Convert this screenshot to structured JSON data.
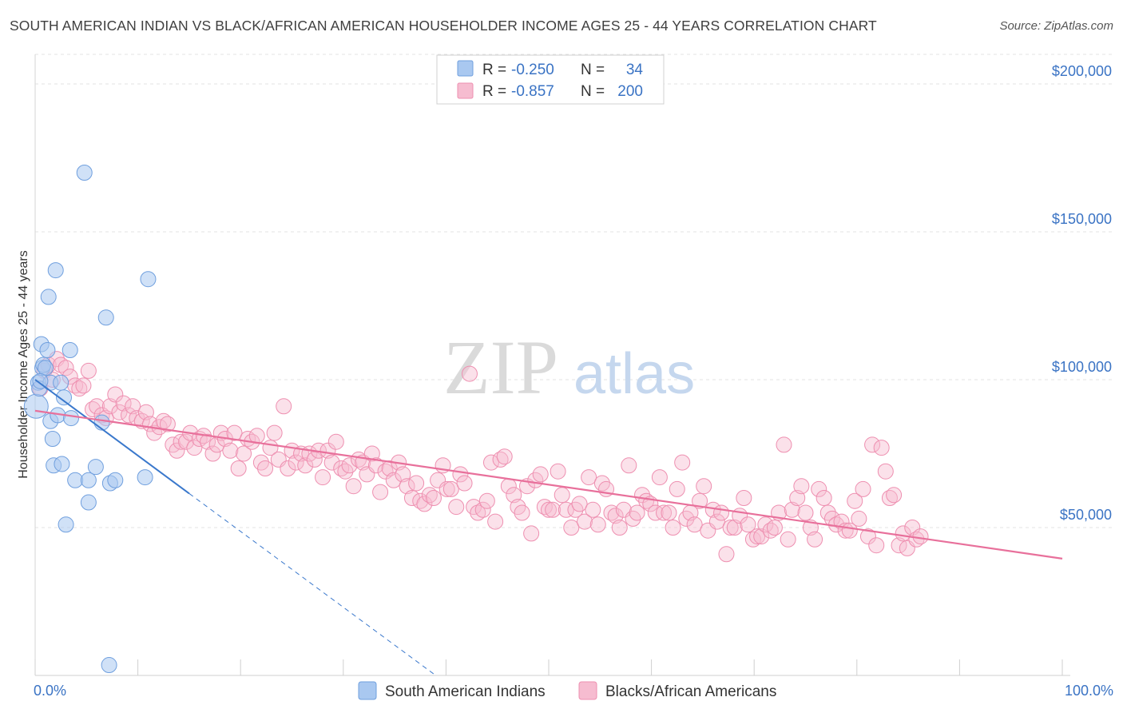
{
  "header": {
    "title": "SOUTH AMERICAN INDIAN VS BLACK/AFRICAN AMERICAN HOUSEHOLDER INCOME AGES 25 - 44 YEARS CORRELATION CHART",
    "source": "Source: ZipAtlas.com"
  },
  "watermark": {
    "zip": "ZIP",
    "atlas": "atlas"
  },
  "legend": {
    "r_label": "R =",
    "n_label": "N =",
    "rows": [
      {
        "r": "-0.250",
        "n": "34"
      },
      {
        "r": "-0.857",
        "n": "200"
      }
    ]
  },
  "colors": {
    "blue_fill": "#a9c8f0",
    "blue_stroke": "#6f9fde",
    "blue_line": "#3a78cc",
    "pink_fill": "#f6bcd0",
    "pink_stroke": "#ee8fb0",
    "pink_line": "#e8709b",
    "tick_text": "#3a73c4"
  },
  "chart_data": {
    "type": "scatter",
    "title": "SOUTH AMERICAN INDIAN VS BLACK/AFRICAN AMERICAN HOUSEHOLDER INCOME AGES 25 - 44 YEARS CORRELATION CHART",
    "xlabel": "",
    "ylabel": "Householder Income Ages 25 - 44 years",
    "xlim": [
      0,
      100
    ],
    "ylim": [
      0,
      210000
    ],
    "x_tick_labels": [
      "0.0%",
      "100.0%"
    ],
    "y_ticks": [
      50000,
      100000,
      150000,
      200000
    ],
    "y_tick_labels": [
      "$50,000",
      "$100,000",
      "$150,000",
      "$200,000"
    ],
    "grid": "horizontal dashed",
    "legend_position": "top-center",
    "series": [
      {
        "name": "South American Indians",
        "color": "#a9c8f0",
        "r": -0.25,
        "n": 34,
        "trend": {
          "x0": 0,
          "y0": 100000,
          "x1": 15,
          "y1": 61500,
          "dashed_to_x": 39,
          "dashed_to_y": 0
        },
        "points": [
          [
            0.1,
            91000
          ],
          [
            0.3,
            99000
          ],
          [
            0.4,
            97000
          ],
          [
            0.6,
            112000
          ],
          [
            0.7,
            104000
          ],
          [
            0.8,
            105000
          ],
          [
            1.0,
            104000
          ],
          [
            1.2,
            110000
          ],
          [
            1.3,
            128000
          ],
          [
            1.5,
            99000
          ],
          [
            1.5,
            86000
          ],
          [
            1.7,
            80000
          ],
          [
            1.8,
            71000
          ],
          [
            2.0,
            137000
          ],
          [
            2.2,
            88000
          ],
          [
            2.5,
            99000
          ],
          [
            2.6,
            71500
          ],
          [
            2.8,
            94000
          ],
          [
            3.0,
            51000
          ],
          [
            3.4,
            110000
          ],
          [
            3.5,
            87000
          ],
          [
            3.9,
            66000
          ],
          [
            4.8,
            170000
          ],
          [
            5.2,
            58500
          ],
          [
            5.2,
            66000
          ],
          [
            5.9,
            70500
          ],
          [
            6.5,
            85500
          ],
          [
            6.9,
            121000
          ],
          [
            7.2,
            3500
          ],
          [
            7.3,
            65000
          ],
          [
            7.8,
            66000
          ],
          [
            10.7,
            67000
          ],
          [
            11.0,
            134000
          ],
          [
            0.5,
            99500
          ]
        ]
      },
      {
        "name": "Blacks/African Americans",
        "color": "#f6bcd0",
        "r": -0.857,
        "n": 200,
        "trend": {
          "x0": 0,
          "y0": 89500,
          "x1": 100,
          "y1": 39500
        },
        "points": [
          [
            0.5,
            97000
          ],
          [
            0.9,
            103000
          ],
          [
            1.3,
            105000
          ],
          [
            1.7,
            100000
          ],
          [
            2.1,
            107000
          ],
          [
            2.5,
            105000
          ],
          [
            3.0,
            104000
          ],
          [
            3.4,
            101000
          ],
          [
            3.9,
            98000
          ],
          [
            4.3,
            97000
          ],
          [
            4.7,
            98000
          ],
          [
            5.2,
            103000
          ],
          [
            5.6,
            90000
          ],
          [
            6.0,
            91000
          ],
          [
            6.5,
            88000
          ],
          [
            6.9,
            87000
          ],
          [
            7.3,
            91000
          ],
          [
            7.8,
            95000
          ],
          [
            8.2,
            89000
          ],
          [
            8.6,
            92000
          ],
          [
            9.1,
            88000
          ],
          [
            9.5,
            91000
          ],
          [
            9.9,
            87000
          ],
          [
            10.4,
            86000
          ],
          [
            10.8,
            89000
          ],
          [
            11.2,
            85000
          ],
          [
            11.6,
            82000
          ],
          [
            12.1,
            84000
          ],
          [
            12.5,
            86000
          ],
          [
            12.9,
            85000
          ],
          [
            13.4,
            78000
          ],
          [
            13.8,
            76000
          ],
          [
            14.2,
            79000
          ],
          [
            14.7,
            79000
          ],
          [
            15.1,
            82000
          ],
          [
            15.5,
            77000
          ],
          [
            16.0,
            80000
          ],
          [
            16.4,
            81000
          ],
          [
            16.8,
            79000
          ],
          [
            17.3,
            75000
          ],
          [
            17.7,
            78000
          ],
          [
            18.1,
            82000
          ],
          [
            18.5,
            80000
          ],
          [
            19.0,
            76000
          ],
          [
            19.4,
            82000
          ],
          [
            19.8,
            70000
          ],
          [
            20.3,
            75000
          ],
          [
            20.7,
            80000
          ],
          [
            21.1,
            79000
          ],
          [
            21.6,
            81000
          ],
          [
            22.0,
            72000
          ],
          [
            22.4,
            70000
          ],
          [
            22.9,
            77000
          ],
          [
            23.3,
            82000
          ],
          [
            23.7,
            73000
          ],
          [
            24.2,
            91000
          ],
          [
            24.6,
            70000
          ],
          [
            25.0,
            76000
          ],
          [
            25.4,
            72000
          ],
          [
            25.9,
            75000
          ],
          [
            26.3,
            71000
          ],
          [
            26.7,
            75000
          ],
          [
            27.2,
            73000
          ],
          [
            27.6,
            76000
          ],
          [
            28.0,
            67000
          ],
          [
            28.5,
            76000
          ],
          [
            28.9,
            72000
          ],
          [
            29.3,
            79000
          ],
          [
            29.8,
            70000
          ],
          [
            30.2,
            69000
          ],
          [
            30.6,
            71000
          ],
          [
            31.0,
            64000
          ],
          [
            31.5,
            73000
          ],
          [
            31.9,
            72000
          ],
          [
            32.3,
            68000
          ],
          [
            32.8,
            75000
          ],
          [
            33.2,
            71000
          ],
          [
            33.6,
            62000
          ],
          [
            34.1,
            69000
          ],
          [
            34.5,
            70000
          ],
          [
            34.9,
            66000
          ],
          [
            35.4,
            72000
          ],
          [
            35.8,
            68000
          ],
          [
            36.2,
            64000
          ],
          [
            36.7,
            60000
          ],
          [
            37.1,
            65000
          ],
          [
            37.5,
            59000
          ],
          [
            37.9,
            58000
          ],
          [
            38.4,
            61000
          ],
          [
            38.8,
            60000
          ],
          [
            39.2,
            66000
          ],
          [
            39.7,
            71000
          ],
          [
            40.1,
            63000
          ],
          [
            40.5,
            63000
          ],
          [
            41.0,
            57000
          ],
          [
            41.4,
            68000
          ],
          [
            41.8,
            65000
          ],
          [
            42.3,
            102000
          ],
          [
            42.7,
            57000
          ],
          [
            43.1,
            55000
          ],
          [
            43.6,
            56000
          ],
          [
            44.0,
            59000
          ],
          [
            44.4,
            72000
          ],
          [
            44.8,
            52000
          ],
          [
            45.3,
            73000
          ],
          [
            45.7,
            74000
          ],
          [
            46.1,
            64000
          ],
          [
            46.6,
            61000
          ],
          [
            47.0,
            57000
          ],
          [
            47.4,
            55000
          ],
          [
            47.9,
            64000
          ],
          [
            48.3,
            48000
          ],
          [
            48.7,
            66000
          ],
          [
            49.2,
            68000
          ],
          [
            49.6,
            57000
          ],
          [
            50.0,
            56000
          ],
          [
            50.4,
            56000
          ],
          [
            50.9,
            69000
          ],
          [
            51.3,
            61000
          ],
          [
            51.7,
            56000
          ],
          [
            52.2,
            50000
          ],
          [
            52.6,
            56000
          ],
          [
            53.0,
            58000
          ],
          [
            53.5,
            52000
          ],
          [
            53.9,
            67000
          ],
          [
            54.3,
            56000
          ],
          [
            54.8,
            51000
          ],
          [
            55.2,
            65000
          ],
          [
            55.6,
            63000
          ],
          [
            56.1,
            55000
          ],
          [
            56.5,
            54000
          ],
          [
            56.9,
            50000
          ],
          [
            57.3,
            56000
          ],
          [
            57.8,
            71000
          ],
          [
            58.2,
            53000
          ],
          [
            58.6,
            55000
          ],
          [
            59.1,
            61000
          ],
          [
            59.5,
            59000
          ],
          [
            59.9,
            58000
          ],
          [
            60.4,
            55000
          ],
          [
            60.8,
            67000
          ],
          [
            61.2,
            55000
          ],
          [
            61.7,
            55000
          ],
          [
            62.1,
            50000
          ],
          [
            62.5,
            63000
          ],
          [
            63.0,
            72000
          ],
          [
            63.4,
            53000
          ],
          [
            63.8,
            55000
          ],
          [
            64.2,
            51000
          ],
          [
            64.7,
            59000
          ],
          [
            65.1,
            64000
          ],
          [
            65.5,
            49000
          ],
          [
            66.0,
            56000
          ],
          [
            66.4,
            52000
          ],
          [
            66.8,
            55000
          ],
          [
            67.3,
            41000
          ],
          [
            67.7,
            50000
          ],
          [
            68.1,
            50000
          ],
          [
            68.6,
            54000
          ],
          [
            69.0,
            60000
          ],
          [
            69.4,
            51000
          ],
          [
            69.9,
            46000
          ],
          [
            70.3,
            47000
          ],
          [
            70.7,
            47000
          ],
          [
            71.1,
            51000
          ],
          [
            71.6,
            49000
          ],
          [
            72.0,
            50000
          ],
          [
            72.4,
            55000
          ],
          [
            72.9,
            78000
          ],
          [
            73.3,
            46000
          ],
          [
            73.7,
            56000
          ],
          [
            74.2,
            60000
          ],
          [
            74.6,
            64000
          ],
          [
            75.0,
            55000
          ],
          [
            75.5,
            50000
          ],
          [
            75.9,
            46000
          ],
          [
            76.3,
            63000
          ],
          [
            76.8,
            60000
          ],
          [
            77.2,
            55000
          ],
          [
            77.6,
            53000
          ],
          [
            78.0,
            51000
          ],
          [
            78.5,
            52000
          ],
          [
            78.9,
            49000
          ],
          [
            79.3,
            49000
          ],
          [
            79.8,
            59000
          ],
          [
            80.2,
            53000
          ],
          [
            80.6,
            63000
          ],
          [
            81.1,
            47000
          ],
          [
            81.5,
            78000
          ],
          [
            81.9,
            44000
          ],
          [
            82.4,
            77000
          ],
          [
            82.8,
            69000
          ],
          [
            83.2,
            60000
          ],
          [
            83.6,
            61000
          ],
          [
            84.1,
            44000
          ],
          [
            84.5,
            48000
          ],
          [
            84.9,
            43000
          ],
          [
            85.4,
            50000
          ],
          [
            85.8,
            46000
          ],
          [
            86.2,
            47000
          ]
        ]
      }
    ]
  },
  "bottom_legend": [
    {
      "label": "South American Indians"
    },
    {
      "label": "Blacks/African Americans"
    }
  ]
}
